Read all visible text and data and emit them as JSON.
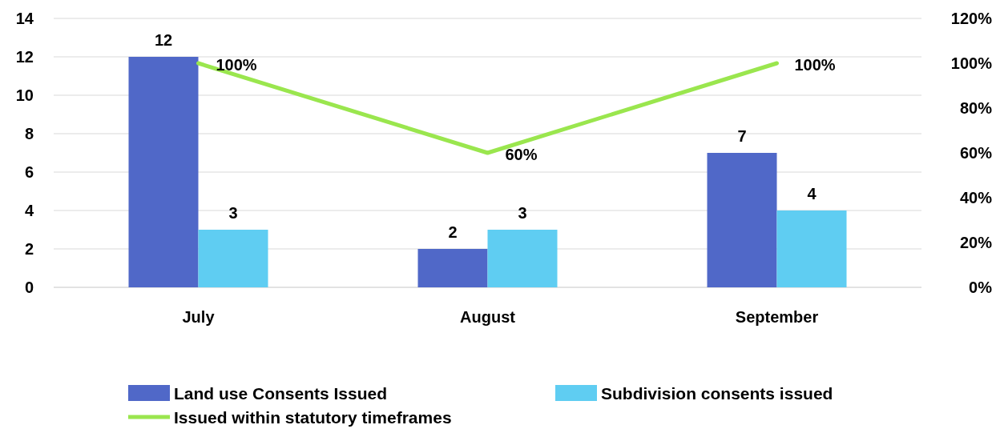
{
  "chart_data": {
    "type": "bar",
    "categories": [
      "July",
      "August",
      "September"
    ],
    "series": [
      {
        "name": "Land use Consents Issued",
        "color": "#5068c8",
        "values": [
          12,
          2,
          7
        ],
        "value_labels": [
          "12",
          "2",
          "7"
        ]
      },
      {
        "name": "Subdivision consents issued",
        "color": "#5fcdf2",
        "values": [
          3,
          3,
          4
        ],
        "value_labels": [
          "3",
          "3",
          "4"
        ]
      },
      {
        "name": "Issued within statutory timeframes",
        "type": "line",
        "axis": "y2",
        "color": "#9ae64e",
        "values": [
          100,
          60,
          100
        ],
        "value_labels": [
          "100%",
          "60%",
          "100%"
        ]
      }
    ],
    "ylim": [
      0,
      14
    ],
    "yticks": [
      0,
      2,
      4,
      6,
      8,
      10,
      12,
      14
    ],
    "y2lim": [
      0,
      120
    ],
    "y2ticks": [
      {
        "value": 0,
        "label": "0%"
      },
      {
        "value": 20,
        "label": "20%"
      },
      {
        "value": 40,
        "label": "40%"
      },
      {
        "value": 60,
        "label": "60%"
      },
      {
        "value": 80,
        "label": "80%"
      },
      {
        "value": 100,
        "label": "100%"
      },
      {
        "value": 120,
        "label": "120%"
      }
    ],
    "grid": "y",
    "legend": "bottom"
  }
}
